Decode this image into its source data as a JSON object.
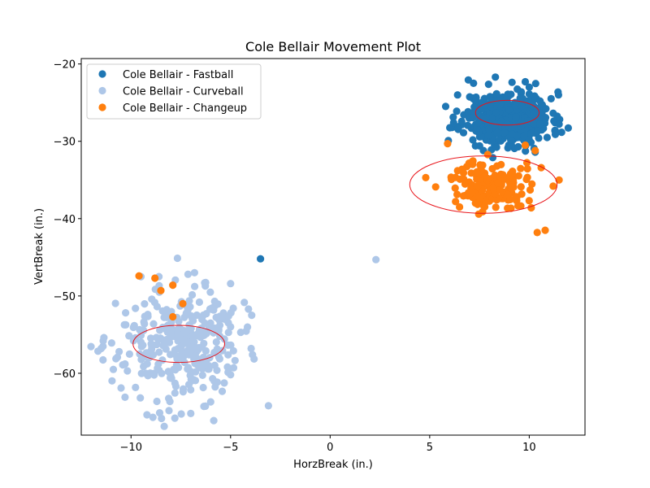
{
  "chart_data": {
    "type": "scatter",
    "title": "Cole Bellair Movement Plot",
    "xlabel": "HorzBreak (in.)",
    "ylabel": "VertBreak (in.)",
    "xlim": [
      -12.5,
      12.8
    ],
    "ylim": [
      -68,
      -19.3
    ],
    "y_inverted": true,
    "xticks": [
      -10,
      -5,
      0,
      5,
      10
    ],
    "yticks": [
      -20,
      -30,
      -40,
      -50,
      -60
    ],
    "grid": false,
    "legend_position": "top-left",
    "series": [
      {
        "name": "Cole Bellair - Fastball",
        "color": "#1f77b4",
        "center": [
          8.9,
          -27.0
        ],
        "spread": [
          1.1,
          1.7
        ],
        "count": 460,
        "seed": 11,
        "points": [
          [
            7.2,
            -22.5
          ],
          [
            8.3,
            -21.7
          ],
          [
            9.8,
            -22.3
          ],
          [
            10.0,
            -23.0
          ],
          [
            6.4,
            -24.0
          ],
          [
            11.1,
            -24.5
          ],
          [
            6.2,
            -27.6
          ],
          [
            11.3,
            -27.6
          ],
          [
            11.5,
            -27.8
          ],
          [
            10.1,
            -29.0
          ],
          [
            10.9,
            -29.5
          ],
          [
            7.3,
            -30.6
          ],
          [
            10.3,
            -31.4
          ],
          [
            -3.5,
            -45.2
          ]
        ],
        "ellipse": {
          "cx": 8.9,
          "cy": -26.3,
          "rx": 1.6,
          "ry": 1.6
        }
      },
      {
        "name": "Cole Bellair - Curveball",
        "color": "#aec7e8",
        "center": [
          -7.6,
          -56.2
        ],
        "spread": [
          1.5,
          3.6
        ],
        "count": 320,
        "seed": 23,
        "points": [
          [
            -11.4,
            -55.8
          ],
          [
            -11.5,
            -56.8
          ],
          [
            -10.3,
            -58.8
          ],
          [
            -10.5,
            -61.9
          ],
          [
            -10.3,
            -63.1
          ],
          [
            -9.5,
            -47.5
          ],
          [
            -8.6,
            -47.5
          ],
          [
            -8.9,
            -65.7
          ],
          [
            -7.8,
            -65.8
          ],
          [
            -7.0,
            -65.2
          ],
          [
            -6.3,
            -48.3
          ],
          [
            -5.8,
            -50.7
          ],
          [
            -5.0,
            -48.4
          ],
          [
            -5.1,
            -52.6
          ],
          [
            -4.1,
            -51.7
          ],
          [
            -5.0,
            -54.0
          ],
          [
            -5.6,
            -54.5
          ],
          [
            -5.0,
            -60.2
          ],
          [
            -5.9,
            -60.7
          ],
          [
            -3.9,
            -57.6
          ],
          [
            -6.0,
            -63.7
          ],
          [
            -3.1,
            -64.2
          ],
          [
            2.3,
            -45.3
          ]
        ],
        "ellipse": {
          "cx": -7.6,
          "cy": -56.2,
          "rx": 2.3,
          "ry": 2.4
        }
      },
      {
        "name": "Cole Bellair - Changeup",
        "color": "#ff7f0e",
        "center": [
          8.1,
          -35.6
        ],
        "spread": [
          0.85,
          1.6
        ],
        "count": 150,
        "seed": 37,
        "points": [
          [
            5.9,
            -30.3
          ],
          [
            4.8,
            -34.7
          ],
          [
            5.3,
            -35.9
          ],
          [
            6.3,
            -37.8
          ],
          [
            6.5,
            -38.5
          ],
          [
            7.3,
            -38.0
          ],
          [
            10.1,
            -38.6
          ],
          [
            10.4,
            -41.8
          ],
          [
            10.8,
            -41.5
          ],
          [
            11.2,
            -35.8
          ],
          [
            11.5,
            -35.0
          ],
          [
            10.6,
            -33.4
          ],
          [
            10.3,
            -31.2
          ],
          [
            9.8,
            -30.5
          ],
          [
            6.4,
            -33.8
          ],
          [
            -9.6,
            -47.4
          ],
          [
            -8.8,
            -47.7
          ],
          [
            -8.5,
            -49.3
          ],
          [
            -7.9,
            -48.6
          ],
          [
            -7.4,
            -51.0
          ],
          [
            -7.9,
            -52.7
          ]
        ],
        "ellipse": {
          "cx": 7.7,
          "cy": -35.6,
          "rx": 3.7,
          "ry": 3.7
        }
      }
    ]
  }
}
